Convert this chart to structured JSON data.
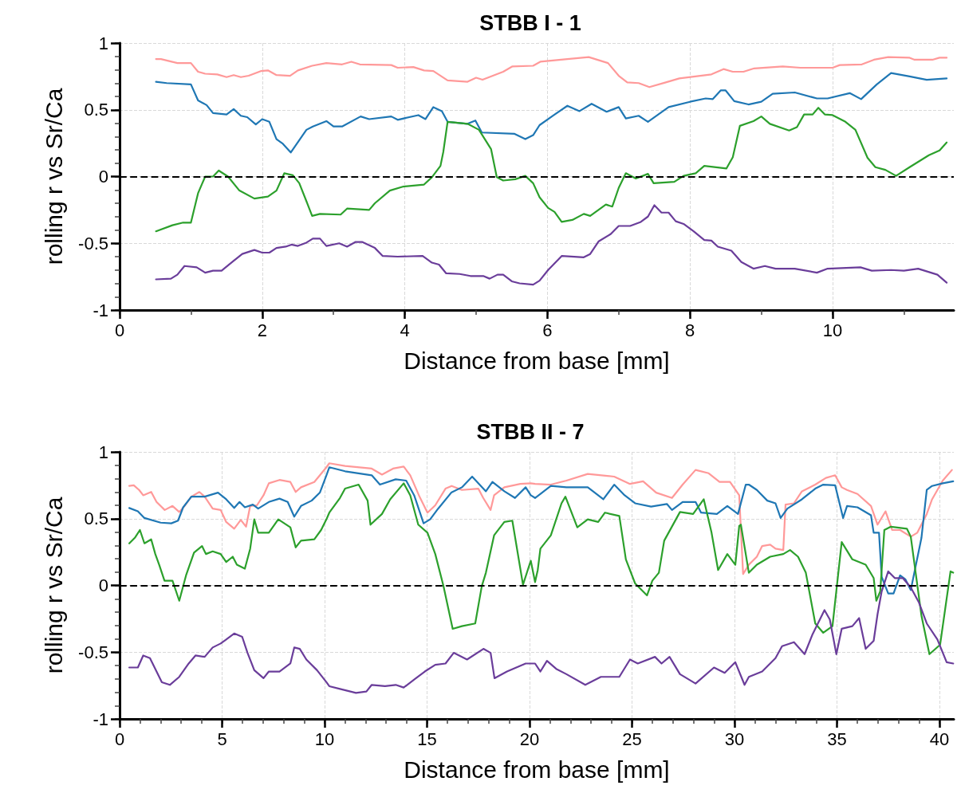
{
  "chart_data": [
    {
      "type": "line",
      "title": "STBB I - 1",
      "xlabel": "Distance from base [mm]",
      "ylabel": "rolling r vs Sr/Ca",
      "xlim": [
        0,
        11.7
      ],
      "ylim": [
        -1,
        1
      ],
      "xticks": [
        0,
        {
          "value": 1,
          "label": null
        },
        2,
        {
          "value": 3,
          "label": null
        },
        4,
        {
          "value": 5,
          "label": null
        },
        6,
        {
          "value": 7,
          "label": null
        },
        8,
        {
          "value": 9,
          "label": null
        },
        10,
        {
          "value": 11,
          "label": null
        }
      ],
      "yticks": [
        -1,
        {
          "value": -0.9,
          "label": null
        },
        {
          "value": -0.8,
          "label": null
        },
        {
          "value": -0.7,
          "label": null
        },
        {
          "value": -0.6,
          "label": null
        },
        -0.5,
        {
          "value": -0.4,
          "label": null
        },
        {
          "value": -0.3,
          "label": null
        },
        {
          "value": -0.2,
          "label": null
        },
        {
          "value": -0.1,
          "label": null
        },
        0,
        {
          "value": 0.1,
          "label": null
        },
        {
          "value": 0.2,
          "label": null
        },
        {
          "value": 0.3,
          "label": null
        },
        {
          "value": 0.4,
          "label": null
        },
        0.5,
        {
          "value": 0.6,
          "label": null
        },
        {
          "value": 0.7,
          "label": null
        },
        {
          "value": 0.8,
          "label": null
        },
        {
          "value": 0.9,
          "label": null
        },
        1
      ],
      "grid": true,
      "ref_lines": [
        {
          "axis": "y",
          "value": 0,
          "color": "#000000",
          "line_style": "dashed"
        }
      ],
      "series": [
        {
          "color": "#ff9999",
          "x": [
            0.51,
            0.58,
            0.81,
            1.0,
            1.1,
            1.2,
            1.37,
            1.5,
            1.6,
            1.7,
            1.81,
            1.98,
            2.08,
            2.2,
            2.39,
            2.5,
            2.7,
            2.9,
            3.12,
            3.25,
            3.37,
            3.81,
            3.9,
            4.12,
            4.27,
            4.4,
            4.6,
            4.88,
            5.0,
            5.09,
            5.38,
            5.51,
            5.8,
            5.9,
            6.28,
            6.58,
            6.85,
            7.0,
            7.12,
            7.28,
            7.43,
            7.66,
            7.85,
            8.3,
            8.47,
            8.6,
            8.75,
            8.9,
            9.3,
            9.55,
            10.0,
            10.1,
            10.41,
            10.58,
            10.78,
            11.08,
            11.15,
            11.4,
            11.5,
            11.6
          ],
          "values": [
            0.88,
            0.88,
            0.85,
            0.85,
            0.785,
            0.77,
            0.765,
            0.745,
            0.76,
            0.745,
            0.755,
            0.79,
            0.795,
            0.76,
            0.755,
            0.795,
            0.83,
            0.85,
            0.84,
            0.86,
            0.84,
            0.835,
            0.815,
            0.82,
            0.795,
            0.79,
            0.72,
            0.71,
            0.74,
            0.725,
            0.785,
            0.825,
            0.83,
            0.86,
            0.88,
            0.895,
            0.85,
            0.755,
            0.705,
            0.7,
            0.67,
            0.705,
            0.735,
            0.765,
            0.805,
            0.785,
            0.785,
            0.81,
            0.825,
            0.815,
            0.815,
            0.835,
            0.84,
            0.875,
            0.895,
            0.89,
            0.875,
            0.875,
            0.89,
            0.89
          ]
        },
        {
          "color": "#1f77b4",
          "x": [
            0.51,
            0.66,
            1.0,
            1.1,
            1.22,
            1.31,
            1.5,
            1.6,
            1.7,
            1.79,
            1.91,
            2.0,
            2.1,
            2.2,
            2.29,
            2.4,
            2.62,
            2.71,
            2.9,
            3.0,
            3.12,
            3.38,
            3.5,
            3.81,
            3.9,
            4.19,
            4.29,
            4.4,
            4.52,
            4.6,
            4.88,
            4.99,
            5.08,
            5.54,
            5.69,
            5.8,
            5.89,
            6.09,
            6.28,
            6.45,
            6.62,
            6.83,
            7.0,
            7.1,
            7.28,
            7.41,
            7.7,
            8.0,
            8.22,
            8.32,
            8.43,
            8.5,
            8.62,
            8.82,
            9.0,
            9.16,
            9.47,
            9.78,
            9.93,
            10.24,
            10.4,
            10.62,
            10.82,
            11.08,
            11.32,
            11.6
          ],
          "values": [
            0.71,
            0.7,
            0.69,
            0.57,
            0.535,
            0.475,
            0.465,
            0.505,
            0.455,
            0.445,
            0.39,
            0.43,
            0.41,
            0.28,
            0.245,
            0.18,
            0.35,
            0.375,
            0.415,
            0.375,
            0.375,
            0.45,
            0.43,
            0.45,
            0.425,
            0.46,
            0.43,
            0.52,
            0.49,
            0.41,
            0.395,
            0.42,
            0.33,
            0.32,
            0.28,
            0.31,
            0.385,
            0.46,
            0.53,
            0.49,
            0.545,
            0.485,
            0.52,
            0.435,
            0.455,
            0.41,
            0.52,
            0.56,
            0.585,
            0.58,
            0.645,
            0.645,
            0.565,
            0.54,
            0.56,
            0.62,
            0.63,
            0.585,
            0.585,
            0.625,
            0.58,
            0.69,
            0.775,
            0.75,
            0.725,
            0.735
          ]
        },
        {
          "color": "#2ca02c",
          "x": [
            0.51,
            0.74,
            0.89,
            1.0,
            1.1,
            1.2,
            1.31,
            1.39,
            1.52,
            1.68,
            1.89,
            2.08,
            2.2,
            2.31,
            2.43,
            2.52,
            2.62,
            2.7,
            2.81,
            3.1,
            3.19,
            3.5,
            3.58,
            3.79,
            3.98,
            4.27,
            4.38,
            4.5,
            4.54,
            4.6,
            4.88,
            5.04,
            5.21,
            5.29,
            5.38,
            5.55,
            5.69,
            5.8,
            5.89,
            6.01,
            6.1,
            6.2,
            6.35,
            6.51,
            6.6,
            6.82,
            6.91,
            7.0,
            7.1,
            7.24,
            7.41,
            7.49,
            7.78,
            7.91,
            8.08,
            8.2,
            8.51,
            8.6,
            8.7,
            8.89,
            9.0,
            9.12,
            9.39,
            9.5,
            9.6,
            9.72,
            9.8,
            9.89,
            10.0,
            10.18,
            10.32,
            10.49,
            10.6,
            10.74,
            10.89,
            11.08,
            11.35,
            11.5,
            11.6
          ],
          "values": [
            -0.41,
            -0.365,
            -0.345,
            -0.345,
            -0.125,
            0.0,
            0.0,
            0.045,
            0.0,
            -0.105,
            -0.165,
            -0.15,
            -0.105,
            0.025,
            0.01,
            -0.05,
            -0.185,
            -0.295,
            -0.28,
            -0.285,
            -0.24,
            -0.25,
            -0.2,
            -0.105,
            -0.075,
            -0.06,
            -0.005,
            0.08,
            0.185,
            0.41,
            0.395,
            0.35,
            0.205,
            -0.005,
            -0.03,
            -0.02,
            0.005,
            -0.05,
            -0.155,
            -0.235,
            -0.265,
            -0.34,
            -0.325,
            -0.28,
            -0.295,
            -0.21,
            -0.225,
            -0.085,
            0.025,
            -0.015,
            0.02,
            -0.05,
            -0.04,
            0.005,
            0.025,
            0.08,
            0.06,
            0.145,
            0.38,
            0.415,
            0.45,
            0.395,
            0.345,
            0.37,
            0.465,
            0.465,
            0.515,
            0.465,
            0.46,
            0.41,
            0.35,
            0.14,
            0.07,
            0.05,
            0.005,
            0.07,
            0.16,
            0.195,
            0.255
          ]
        },
        {
          "color": "#6a3d9a",
          "x": [
            0.51,
            0.72,
            0.81,
            0.91,
            1.08,
            1.2,
            1.31,
            1.43,
            1.58,
            1.72,
            1.89,
            2.0,
            2.1,
            2.2,
            2.33,
            2.41,
            2.5,
            2.62,
            2.71,
            2.81,
            2.9,
            3.08,
            3.19,
            3.31,
            3.4,
            3.58,
            3.69,
            3.9,
            4.25,
            4.38,
            4.48,
            4.58,
            4.77,
            4.92,
            5.1,
            5.19,
            5.3,
            5.38,
            5.5,
            5.61,
            5.8,
            5.89,
            6.01,
            6.2,
            6.51,
            6.6,
            6.72,
            6.89,
            7.0,
            7.16,
            7.31,
            7.41,
            7.5,
            7.6,
            7.7,
            7.8,
            7.91,
            8.05,
            8.2,
            8.3,
            8.39,
            8.58,
            8.72,
            8.89,
            9.05,
            9.2,
            9.47,
            9.78,
            9.93,
            10.39,
            10.55,
            10.82,
            11.0,
            11.2,
            11.47,
            11.6
          ],
          "values": [
            -0.77,
            -0.765,
            -0.735,
            -0.67,
            -0.68,
            -0.72,
            -0.705,
            -0.705,
            -0.64,
            -0.58,
            -0.55,
            -0.57,
            -0.57,
            -0.535,
            -0.525,
            -0.51,
            -0.52,
            -0.495,
            -0.465,
            -0.465,
            -0.52,
            -0.5,
            -0.525,
            -0.49,
            -0.49,
            -0.535,
            -0.595,
            -0.6,
            -0.595,
            -0.645,
            -0.66,
            -0.725,
            -0.73,
            -0.745,
            -0.745,
            -0.765,
            -0.735,
            -0.735,
            -0.785,
            -0.8,
            -0.81,
            -0.78,
            -0.7,
            -0.595,
            -0.605,
            -0.58,
            -0.485,
            -0.43,
            -0.37,
            -0.37,
            -0.34,
            -0.3,
            -0.215,
            -0.27,
            -0.27,
            -0.335,
            -0.355,
            -0.41,
            -0.475,
            -0.48,
            -0.525,
            -0.555,
            -0.64,
            -0.69,
            -0.67,
            -0.69,
            -0.69,
            -0.72,
            -0.69,
            -0.68,
            -0.705,
            -0.7,
            -0.705,
            -0.69,
            -0.735,
            -0.795
          ]
        }
      ]
    },
    {
      "type": "line",
      "title": "STBB II - 7",
      "xlabel": "Distance from base [mm]",
      "ylabel": "rolling r vs Sr/Ca",
      "xlim": [
        0,
        40.7
      ],
      "ylim": [
        -1,
        1
      ],
      "xticks": [
        0,
        {
          "value": 1,
          "label": null
        },
        {
          "value": 2,
          "label": null
        },
        {
          "value": 3,
          "label": null
        },
        {
          "value": 4,
          "label": null
        },
        5,
        {
          "value": 6,
          "label": null
        },
        {
          "value": 7,
          "label": null
        },
        {
          "value": 8,
          "label": null
        },
        {
          "value": 9,
          "label": null
        },
        10,
        {
          "value": 11,
          "label": null
        },
        {
          "value": 12,
          "label": null
        },
        {
          "value": 13,
          "label": null
        },
        {
          "value": 14,
          "label": null
        },
        15,
        {
          "value": 16,
          "label": null
        },
        {
          "value": 17,
          "label": null
        },
        {
          "value": 18,
          "label": null
        },
        {
          "value": 19,
          "label": null
        },
        20,
        {
          "value": 21,
          "label": null
        },
        {
          "value": 22,
          "label": null
        },
        {
          "value": 23,
          "label": null
        },
        {
          "value": 24,
          "label": null
        },
        25,
        {
          "value": 26,
          "label": null
        },
        {
          "value": 27,
          "label": null
        },
        {
          "value": 28,
          "label": null
        },
        {
          "value": 29,
          "label": null
        },
        30,
        {
          "value": 31,
          "label": null
        },
        {
          "value": 32,
          "label": null
        },
        {
          "value": 33,
          "label": null
        },
        {
          "value": 34,
          "label": null
        },
        35,
        {
          "value": 36,
          "label": null
        },
        {
          "value": 37,
          "label": null
        },
        {
          "value": 38,
          "label": null
        },
        {
          "value": 39,
          "label": null
        },
        40
      ],
      "yticks": [
        -1,
        {
          "value": -0.9,
          "label": null
        },
        {
          "value": -0.8,
          "label": null
        },
        {
          "value": -0.7,
          "label": null
        },
        {
          "value": -0.6,
          "label": null
        },
        -0.5,
        {
          "value": -0.4,
          "label": null
        },
        {
          "value": -0.3,
          "label": null
        },
        {
          "value": -0.2,
          "label": null
        },
        {
          "value": -0.1,
          "label": null
        },
        0,
        {
          "value": 0.1,
          "label": null
        },
        {
          "value": 0.2,
          "label": null
        },
        {
          "value": 0.3,
          "label": null
        },
        {
          "value": 0.4,
          "label": null
        },
        0.5,
        {
          "value": 0.6,
          "label": null
        },
        {
          "value": 0.7,
          "label": null
        },
        {
          "value": 0.8,
          "label": null
        },
        {
          "value": 0.9,
          "label": null
        },
        1
      ],
      "grid": true,
      "ref_lines": [
        {
          "axis": "y",
          "value": 0,
          "color": "#000000",
          "line_style": "dashed"
        }
      ],
      "series": [
        {
          "color": "#ff9999",
          "x": [
            0.47,
            0.69,
            0.95,
            1.15,
            1.54,
            1.8,
            2.2,
            2.58,
            2.91,
            3.17,
            3.5,
            3.89,
            4.15,
            4.54,
            4.93,
            5.2,
            5.59,
            5.91,
            6.17,
            6.37,
            6.7,
            7.02,
            7.28,
            7.8,
            8.33,
            8.59,
            8.85,
            9.5,
            10.09,
            10.23,
            11.0,
            12.3,
            12.8,
            13.34,
            13.86,
            14.18,
            14.63,
            15.02,
            15.4,
            15.9,
            16.2,
            16.7,
            17.5,
            17.74,
            18.1,
            18.27,
            18.77,
            19.55,
            20.06,
            20.27,
            21.04,
            21.8,
            22.84,
            24.13,
            24.9,
            25.54,
            26.18,
            26.95,
            27.47,
            28.1,
            28.74,
            29.27,
            29.78,
            30.23,
            30.42,
            30.7,
            31.09,
            31.35,
            31.74,
            32.0,
            32.38,
            32.49,
            32.9,
            33.29,
            33.94,
            34.46,
            34.91,
            35.23,
            35.49,
            36.0,
            36.66,
            36.98,
            37.37,
            37.69,
            38.08,
            38.6,
            38.92,
            39.38,
            39.64,
            40.16,
            40.61
          ],
          "values": [
            0.745,
            0.75,
            0.715,
            0.675,
            0.7,
            0.625,
            0.565,
            0.595,
            0.55,
            0.595,
            0.665,
            0.7,
            0.665,
            0.575,
            0.565,
            0.475,
            0.425,
            0.49,
            0.44,
            0.595,
            0.6,
            0.675,
            0.765,
            0.79,
            0.775,
            0.7,
            0.735,
            0.775,
            0.885,
            0.915,
            0.895,
            0.875,
            0.83,
            0.875,
            0.89,
            0.825,
            0.665,
            0.545,
            0.6,
            0.725,
            0.745,
            0.715,
            0.725,
            0.655,
            0.565,
            0.675,
            0.735,
            0.76,
            0.765,
            0.76,
            0.755,
            0.785,
            0.835,
            0.815,
            0.76,
            0.78,
            0.695,
            0.655,
            0.755,
            0.865,
            0.84,
            0.775,
            0.775,
            0.675,
            0.085,
            0.155,
            0.215,
            0.295,
            0.305,
            0.275,
            0.265,
            0.605,
            0.615,
            0.705,
            0.755,
            0.805,
            0.825,
            0.735,
            0.715,
            0.685,
            0.595,
            0.455,
            0.555,
            0.415,
            0.415,
            0.365,
            0.395,
            0.535,
            0.645,
            0.785,
            0.865
          ]
        },
        {
          "color": "#1f77b4",
          "x": [
            0.47,
            0.89,
            1.21,
            2.0,
            2.52,
            2.85,
            3.1,
            3.5,
            4.15,
            4.8,
            5.2,
            5.59,
            5.85,
            6.11,
            6.5,
            6.76,
            7.28,
            7.8,
            8.2,
            8.52,
            8.85,
            9.37,
            9.77,
            10.09,
            10.23,
            11.0,
            12.3,
            12.7,
            13.47,
            13.98,
            14.37,
            14.83,
            15.15,
            15.54,
            16.18,
            16.7,
            17.2,
            17.87,
            18.19,
            18.77,
            19.29,
            19.81,
            20.06,
            20.27,
            21.04,
            21.8,
            22.84,
            23.6,
            24.13,
            24.64,
            25.15,
            25.93,
            26.7,
            26.95,
            27.47,
            28.1,
            28.37,
            29.14,
            29.65,
            30.17,
            30.55,
            30.7,
            31.09,
            31.6,
            32.0,
            32.25,
            32.58,
            33.29,
            33.94,
            34.33,
            34.91,
            35.3,
            35.49,
            36.0,
            36.66,
            36.79,
            37.05,
            37.18,
            37.5,
            37.76,
            38.08,
            38.34,
            38.6,
            39.12,
            39.38,
            39.64,
            40.16,
            40.67
          ],
          "values": [
            0.58,
            0.555,
            0.505,
            0.47,
            0.465,
            0.485,
            0.585,
            0.665,
            0.665,
            0.695,
            0.645,
            0.58,
            0.625,
            0.585,
            0.605,
            0.575,
            0.625,
            0.65,
            0.625,
            0.515,
            0.595,
            0.635,
            0.695,
            0.825,
            0.885,
            0.855,
            0.825,
            0.755,
            0.795,
            0.785,
            0.675,
            0.465,
            0.495,
            0.575,
            0.695,
            0.735,
            0.815,
            0.705,
            0.775,
            0.705,
            0.655,
            0.735,
            0.675,
            0.655,
            0.745,
            0.735,
            0.735,
            0.645,
            0.755,
            0.675,
            0.615,
            0.59,
            0.61,
            0.565,
            0.625,
            0.625,
            0.545,
            0.535,
            0.595,
            0.535,
            0.755,
            0.755,
            0.715,
            0.635,
            0.615,
            0.505,
            0.575,
            0.645,
            0.725,
            0.755,
            0.75,
            0.505,
            0.595,
            0.585,
            0.525,
            0.395,
            0.395,
            0.065,
            -0.06,
            -0.06,
            0.075,
            0.045,
            -0.035,
            0.355,
            0.715,
            0.745,
            0.765,
            0.78
          ]
        },
        {
          "color": "#2ca02c",
          "x": [
            0.47,
            0.76,
            0.99,
            1.21,
            1.54,
            1.74,
            1.93,
            2.19,
            2.58,
            2.91,
            3.24,
            3.63,
            4.02,
            4.21,
            4.54,
            4.93,
            5.2,
            5.52,
            5.72,
            6.11,
            6.37,
            6.57,
            6.76,
            7.28,
            7.74,
            8.33,
            8.59,
            8.85,
            9.5,
            9.83,
            10.09,
            10.23,
            10.75,
            11.0,
            11.66,
            12.1,
            12.24,
            12.8,
            13.2,
            13.86,
            14.18,
            14.57,
            15.02,
            15.4,
            15.8,
            16.25,
            16.7,
            17.35,
            17.67,
            17.87,
            18.27,
            18.77,
            19.16,
            19.68,
            20.06,
            20.27,
            20.4,
            20.53,
            21.04,
            21.56,
            21.75,
            22.33,
            22.84,
            23.35,
            23.68,
            24.38,
            24.7,
            25.15,
            25.73,
            25.99,
            26.31,
            26.57,
            27.34,
            27.98,
            28.5,
            28.88,
            29.2,
            29.65,
            30.04,
            30.23,
            30.31,
            30.7,
            31.09,
            31.74,
            32.38,
            32.71,
            33.1,
            33.48,
            33.94,
            34.33,
            34.78,
            35.23,
            35.75,
            36.4,
            36.79,
            36.92,
            37.11,
            37.31,
            37.63,
            38.41,
            38.6,
            39.12,
            39.51,
            40.03,
            40.54,
            40.67
          ],
          "values": [
            0.315,
            0.36,
            0.415,
            0.315,
            0.345,
            0.235,
            0.155,
            0.035,
            0.035,
            -0.115,
            0.075,
            0.245,
            0.295,
            0.235,
            0.255,
            0.235,
            0.175,
            0.215,
            0.155,
            0.125,
            0.275,
            0.495,
            0.395,
            0.395,
            0.495,
            0.435,
            0.285,
            0.335,
            0.345,
            0.415,
            0.495,
            0.545,
            0.655,
            0.725,
            0.755,
            0.635,
            0.455,
            0.535,
            0.645,
            0.765,
            0.675,
            0.455,
            0.395,
            0.235,
            -0.005,
            -0.325,
            -0.305,
            -0.285,
            -0.005,
            0.095,
            0.375,
            0.475,
            0.485,
            0.005,
            0.185,
            0.025,
            0.115,
            0.275,
            0.375,
            0.615,
            0.665,
            0.435,
            0.495,
            0.475,
            0.545,
            0.52,
            0.195,
            0.015,
            -0.075,
            0.035,
            0.095,
            0.335,
            0.55,
            0.535,
            0.645,
            0.395,
            0.115,
            0.235,
            0.155,
            0.445,
            0.455,
            0.095,
            0.155,
            0.215,
            0.235,
            0.265,
            0.215,
            0.095,
            -0.285,
            -0.355,
            -0.305,
            0.325,
            0.195,
            0.155,
            0.055,
            -0.115,
            -0.045,
            0.415,
            0.44,
            0.425,
            0.365,
            -0.225,
            -0.515,
            -0.445,
            0.105,
            0.095
          ]
        },
        {
          "color": "#6a3d9a",
          "x": [
            0.47,
            0.89,
            1.15,
            1.48,
            2.06,
            2.45,
            2.91,
            3.37,
            3.7,
            4.15,
            4.54,
            4.93,
            5.2,
            5.59,
            5.98,
            6.24,
            6.57,
            7.02,
            7.28,
            7.8,
            8.33,
            8.52,
            8.79,
            9.11,
            9.63,
            10.09,
            10.23,
            10.75,
            11.53,
            12.04,
            12.3,
            12.95,
            13.47,
            13.86,
            14.37,
            14.89,
            15.4,
            15.9,
            16.3,
            16.95,
            17.75,
            18.1,
            18.29,
            18.9,
            19.81,
            20.06,
            20.27,
            20.53,
            20.85,
            21.3,
            21.8,
            22.72,
            23.48,
            24.38,
            24.9,
            25.28,
            26.12,
            26.44,
            26.83,
            27.34,
            28.1,
            29.0,
            29.52,
            30.04,
            30.49,
            30.7,
            31.35,
            32.0,
            32.32,
            32.9,
            33.42,
            33.81,
            34.39,
            34.65,
            34.97,
            35.23,
            35.75,
            36.08,
            36.4,
            36.79,
            36.98,
            37.18,
            37.5,
            37.82,
            38.21,
            38.6,
            38.99,
            39.38,
            39.9,
            40.35,
            40.67
          ],
          "values": [
            -0.615,
            -0.615,
            -0.525,
            -0.545,
            -0.725,
            -0.745,
            -0.685,
            -0.585,
            -0.525,
            -0.535,
            -0.465,
            -0.435,
            -0.405,
            -0.36,
            -0.385,
            -0.505,
            -0.635,
            -0.695,
            -0.645,
            -0.645,
            -0.585,
            -0.465,
            -0.475,
            -0.555,
            -0.635,
            -0.725,
            -0.755,
            -0.775,
            -0.805,
            -0.795,
            -0.745,
            -0.755,
            -0.745,
            -0.765,
            -0.705,
            -0.645,
            -0.595,
            -0.585,
            -0.505,
            -0.555,
            -0.475,
            -0.505,
            -0.695,
            -0.645,
            -0.585,
            -0.585,
            -0.585,
            -0.645,
            -0.565,
            -0.625,
            -0.665,
            -0.745,
            -0.685,
            -0.685,
            -0.555,
            -0.585,
            -0.535,
            -0.585,
            -0.535,
            -0.665,
            -0.735,
            -0.615,
            -0.655,
            -0.575,
            -0.745,
            -0.685,
            -0.645,
            -0.545,
            -0.455,
            -0.425,
            -0.515,
            -0.365,
            -0.185,
            -0.255,
            -0.515,
            -0.325,
            -0.305,
            -0.245,
            -0.475,
            -0.415,
            -0.215,
            -0.045,
            0.105,
            0.055,
            0.055,
            -0.015,
            -0.125,
            -0.285,
            -0.405,
            -0.575,
            -0.585
          ]
        }
      ]
    }
  ]
}
